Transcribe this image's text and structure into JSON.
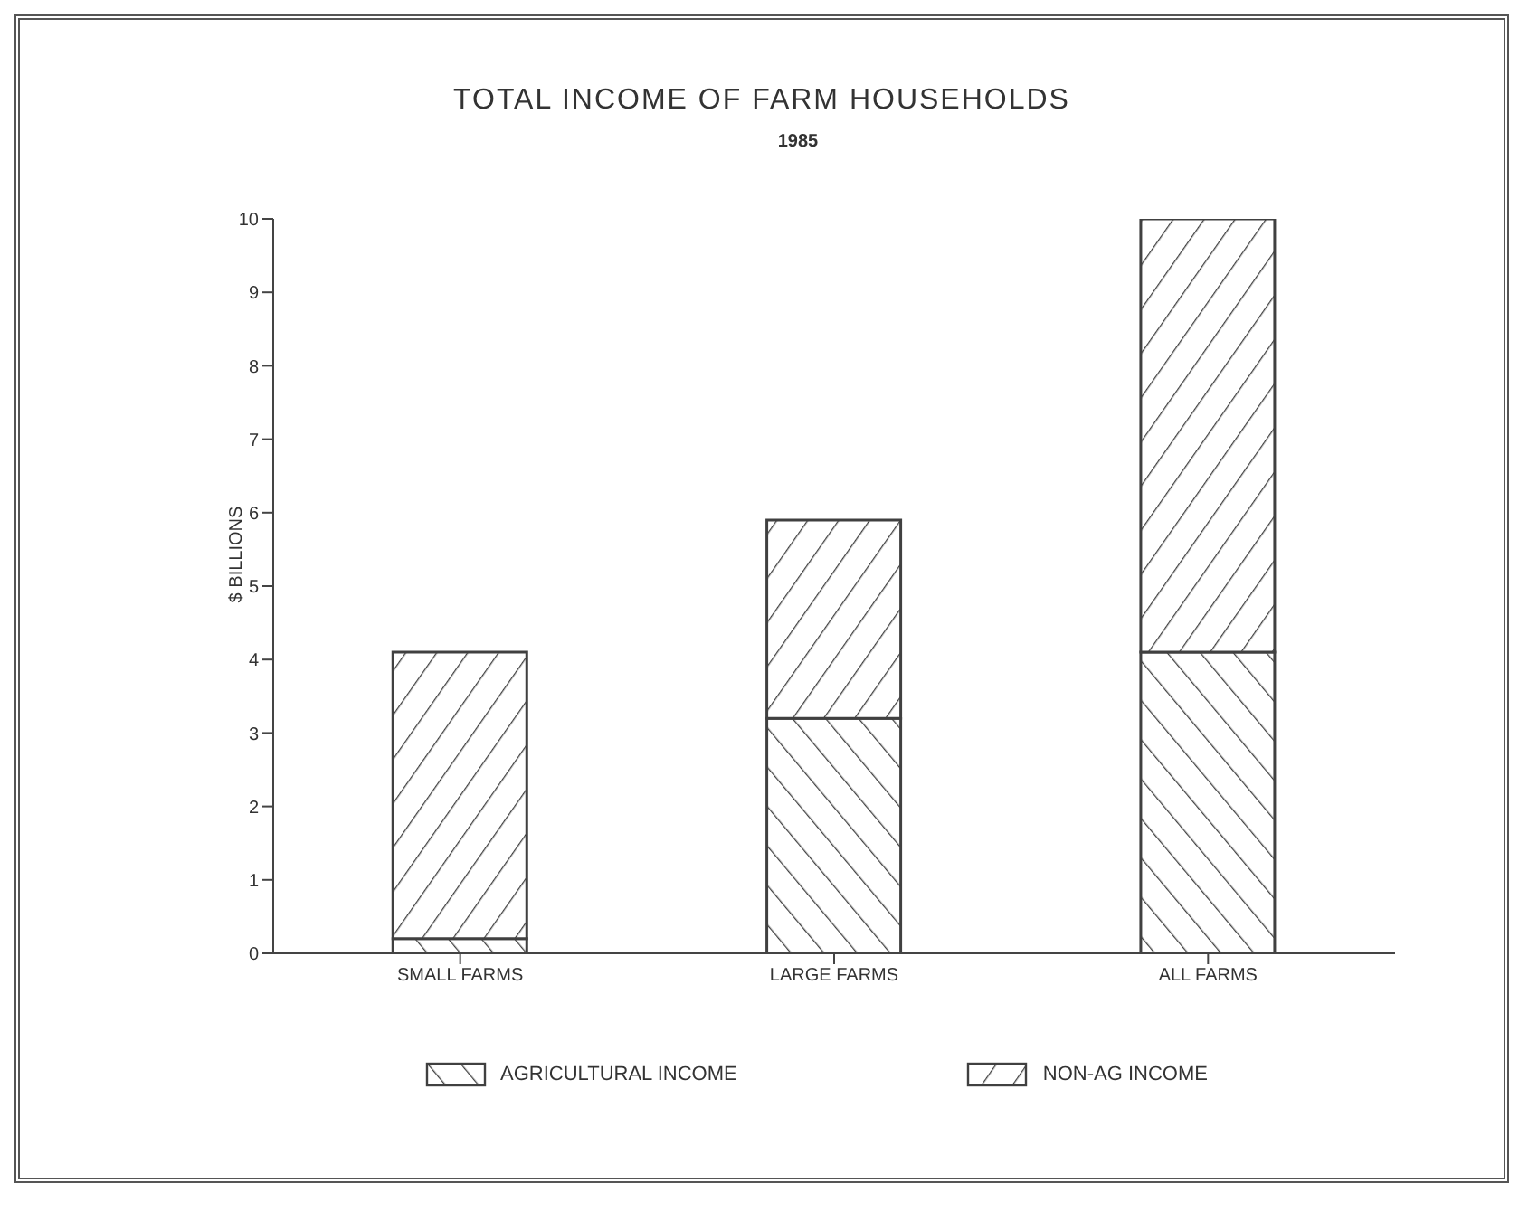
{
  "chart_data": {
    "type": "bar",
    "title": "TOTAL INCOME OF FARM HOUSEHOLDS",
    "subtitle": "1985",
    "ylabel": "$ BILLIONS",
    "categories": [
      "SMALL FARMS",
      "LARGE FARMS",
      "ALL FARMS"
    ],
    "stacked": true,
    "series": [
      {
        "name": "AGRICULTURAL INCOME",
        "color": "#404040",
        "values": [
          0.2,
          3.2,
          4.1
        ]
      },
      {
        "name": "NON-AG INCOME",
        "color": "#404040",
        "values": [
          3.9,
          2.7,
          5.9
        ]
      }
    ],
    "ylim": [
      0,
      10
    ],
    "yticks": [
      0,
      1,
      2,
      3,
      4,
      5,
      6,
      7,
      8,
      9,
      10
    ],
    "grid": false,
    "legend": "bottom"
  }
}
